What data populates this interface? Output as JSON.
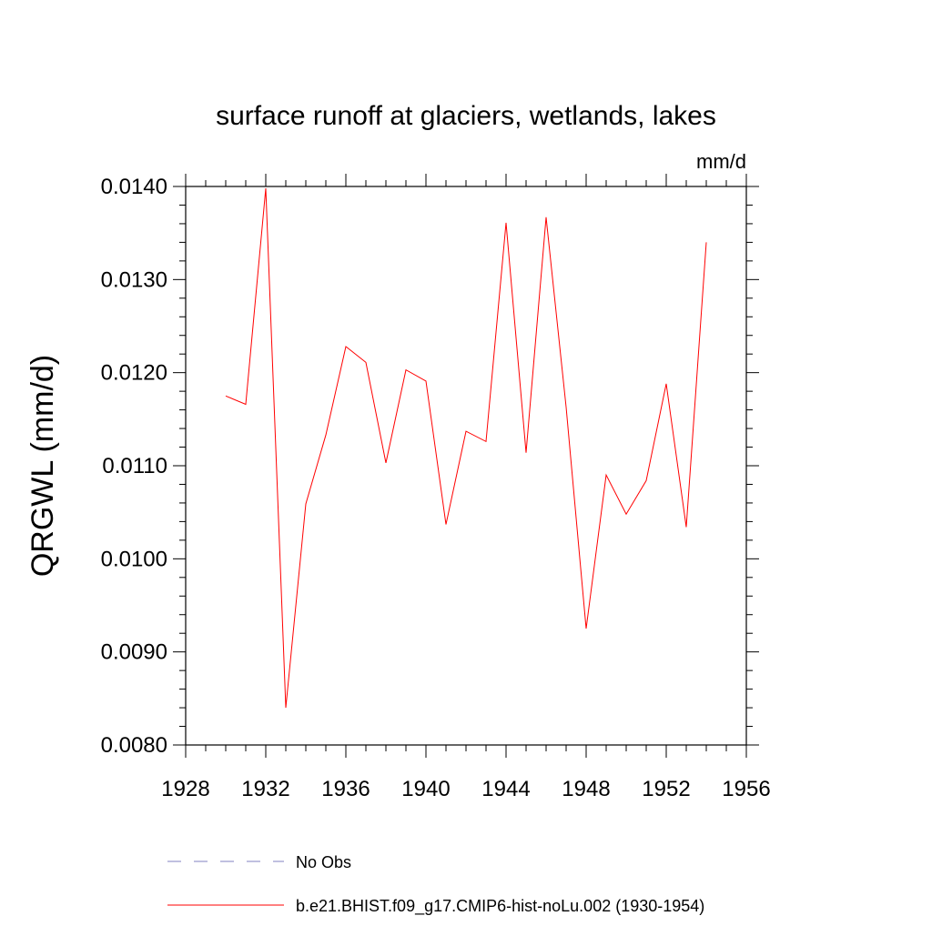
{
  "chart_data": {
    "type": "line",
    "title": "surface runoff at glaciers, wetlands, lakes",
    "units_label": "mm/d",
    "ylabel": "QRGWL  (mm/d)",
    "xlabel": "",
    "xlim": [
      1928,
      1956
    ],
    "ylim": [
      0.008,
      0.014
    ],
    "x_ticks": [
      1928,
      1932,
      1936,
      1940,
      1944,
      1948,
      1952,
      1956
    ],
    "y_ticks": [
      0.008,
      0.009,
      0.01,
      0.011,
      0.012,
      0.013,
      0.014
    ],
    "y_tick_labels": [
      "0.0080",
      "0.0090",
      "0.0100",
      "0.0110",
      "0.0120",
      "0.0130",
      "0.0140"
    ],
    "x_tick_labels": [
      "1928",
      "1932",
      "1936",
      "1940",
      "1944",
      "1948",
      "1952",
      "1956"
    ],
    "grid": false,
    "legend_position": "bottom",
    "series": [
      {
        "name": "b.e21.BHIST.f09_g17.CMIP6-hist-noLu.002 (1930-1954)",
        "color": "#ff0000",
        "dash": "solid",
        "x": [
          1930,
          1931,
          1932,
          1933,
          1934,
          1935,
          1936,
          1937,
          1938,
          1939,
          1940,
          1941,
          1942,
          1943,
          1944,
          1945,
          1946,
          1947,
          1948,
          1949,
          1950,
          1951,
          1952,
          1953,
          1954
        ],
        "values": [
          0.01175,
          0.01166,
          0.01398,
          0.0084,
          0.01059,
          0.01133,
          0.01228,
          0.01211,
          0.01103,
          0.01203,
          0.01191,
          0.01037,
          0.01137,
          0.01126,
          0.01361,
          0.01114,
          0.01367,
          0.01163,
          0.00925,
          0.0109,
          0.01048,
          0.01084,
          0.01188,
          0.01034,
          0.0134
        ]
      }
    ],
    "legend": [
      {
        "label": "No Obs",
        "color": "#8080c0",
        "dash": "dashed"
      },
      {
        "label": "b.e21.BHIST.f09_g17.CMIP6-hist-noLu.002 (1930-1954)",
        "color": "#ff0000",
        "dash": "solid"
      }
    ]
  }
}
